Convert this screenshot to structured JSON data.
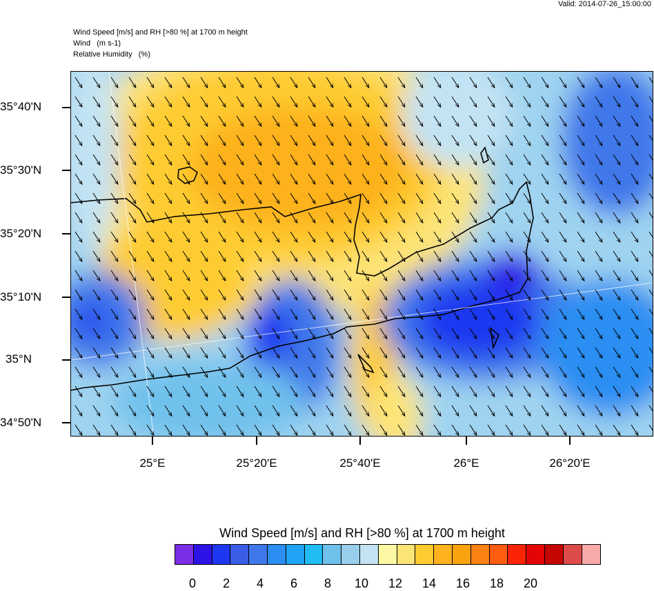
{
  "valid_time": "Valid: 2014-07-26_15:00:00",
  "header": {
    "line1": "Wind Speed [m/s] and RH [>80 %] at 1700 m height",
    "line2": "Wind   (m s-1)",
    "line3": "Relative Humidity   (%)"
  },
  "lat_labels": [
    "35°40'N",
    "35°30'N",
    "35°20'N",
    "35°10'N",
    "35°N",
    "34°50'N"
  ],
  "lon_labels": [
    "25°E",
    "25°20'E",
    "25°40'E",
    "26°E",
    "26°20'E"
  ],
  "legend": {
    "title": "Wind Speed [m/s] and RH [>80 %] at 1700 m height",
    "colors": [
      "#7b2ee6",
      "#2e13e6",
      "#1f37f0",
      "#3b5ce6",
      "#3f78ea",
      "#2a8ef2",
      "#20a4f5",
      "#1fbdf4",
      "#6fc1ec",
      "#99cfec",
      "#c3e3f3",
      "#fdf8a3",
      "#fde477",
      "#fecc30",
      "#fdb21e",
      "#fba20f",
      "#fd8213",
      "#fd5c11",
      "#fb2407",
      "#e30405",
      "#c50404",
      "#dc4a4a",
      "#f8a9aa"
    ],
    "tick_labels": [
      "0",
      "2",
      "4",
      "6",
      "8",
      "10",
      "12",
      "14",
      "16",
      "18",
      "20"
    ]
  }
}
